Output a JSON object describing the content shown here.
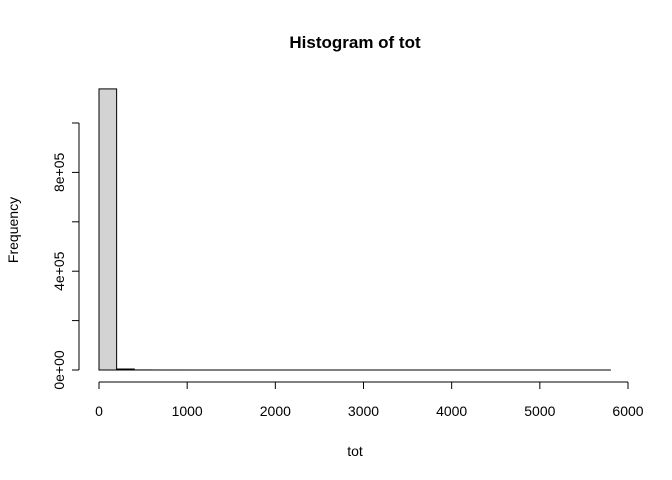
{
  "chart_data": {
    "type": "bar",
    "title": "Histogram of tot",
    "xlabel": "tot",
    "ylabel": "Frequency",
    "xlim": [
      0,
      6000
    ],
    "ylim": [
      0,
      1100000
    ],
    "x_ticks": [
      0,
      1000,
      2000,
      3000,
      4000,
      5000,
      6000
    ],
    "x_tick_labels": [
      "0",
      "1000",
      "2000",
      "3000",
      "4000",
      "5000",
      "6000"
    ],
    "y_ticks": [
      0,
      200000,
      400000,
      600000,
      800000,
      1000000
    ],
    "y_tick_labels": [
      "0e+00",
      "",
      "4e+05",
      "",
      "8e+05",
      ""
    ],
    "bin_edges": [
      0,
      200,
      400,
      600,
      800,
      1000,
      1200,
      1400,
      1600,
      1800,
      2000,
      2200,
      2400,
      2600,
      2800,
      3000,
      3200,
      3400,
      3600,
      3800,
      4000,
      4200,
      4400,
      4600,
      4800,
      5000,
      5200,
      5400,
      5600,
      5800
    ],
    "values": [
      1138000,
      4000,
      300,
      100,
      50,
      30,
      20,
      10,
      10,
      5,
      5,
      3,
      3,
      2,
      2,
      1,
      1,
      1,
      1,
      1,
      1,
      1,
      1,
      1,
      1,
      1,
      1,
      1,
      1
    ],
    "bar_color": "#d3d3d3",
    "grid": false,
    "legend": "none"
  }
}
